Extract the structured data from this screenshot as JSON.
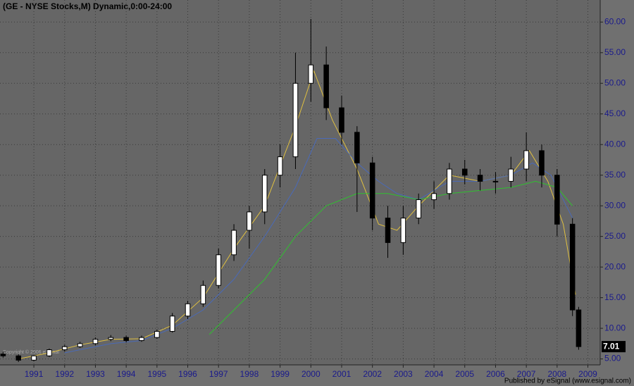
{
  "chart_data": {
    "type": "candlestick",
    "title": "(GE - NYSE Stocks,M) Dynamic,0:00-24:00",
    "copyright": "Copyright © 2006 eSignal",
    "footer": "Published by eSignal (www.esignal.com)",
    "x": [
      1990.5,
      1991.0,
      1991.5,
      1992.0,
      1992.5,
      1993.0,
      1993.5,
      1994.0,
      1994.5,
      1995.0,
      1995.5,
      1996.0,
      1996.5,
      1997.0,
      1997.5,
      1998.0,
      1998.5,
      1999.0,
      1999.5,
      2000.0,
      2000.5,
      2001.0,
      2001.5,
      2002.0,
      2002.5,
      2003.0,
      2003.5,
      2004.0,
      2004.5,
      2005.0,
      2005.5,
      2006.0,
      2006.5,
      2007.0,
      2007.5,
      2008.0,
      2008.5,
      2009.0,
      2009.2
    ],
    "open": [
      5.8,
      5.5,
      4.8,
      5.5,
      6.5,
      7.0,
      7.5,
      8.2,
      8.5,
      8.0,
      8.5,
      9.5,
      12,
      14,
      17,
      22,
      26,
      29,
      35,
      38,
      50,
      53,
      46,
      42,
      37,
      28,
      24,
      28,
      31,
      32,
      36,
      35,
      34,
      34,
      36,
      39,
      35,
      27,
      13
    ],
    "high": [
      6.2,
      5.8,
      5.6,
      6.7,
      7.3,
      7.8,
      8.5,
      8.9,
      8.8,
      8.8,
      9.8,
      12.5,
      14.5,
      17.8,
      23,
      27,
      30,
      36,
      40,
      55,
      60.5,
      56,
      48,
      43,
      38,
      30,
      30,
      32,
      34,
      37,
      37.5,
      36,
      35.5,
      38,
      42,
      40,
      36,
      28,
      13.5
    ],
    "low": [
      5.2,
      4.5,
      4.6,
      5.3,
      6.2,
      6.8,
      7.2,
      7.9,
      7.7,
      7.8,
      8.3,
      9.3,
      11.5,
      13.5,
      16.5,
      21,
      23,
      27,
      33,
      36,
      47,
      44,
      40,
      29,
      26,
      21.5,
      22,
      27,
      29.5,
      31,
      33.5,
      32.5,
      32,
      33,
      34,
      33,
      25,
      12,
      6.5
    ],
    "close": [
      5.5,
      4.8,
      5.5,
      6.5,
      7.0,
      7.5,
      8.2,
      8.5,
      8.0,
      8.5,
      9.5,
      12,
      14,
      17,
      22,
      26,
      29,
      35,
      38,
      50,
      53,
      46,
      42,
      37,
      28,
      24,
      28,
      31,
      32,
      36,
      35,
      34,
      34,
      36,
      39,
      35,
      27,
      13,
      7.01
    ],
    "series": [
      {
        "color": "#e0c040",
        "x": [
          1991.0,
          1992.0,
          1993.0,
          1994.0,
          1995.0,
          1996.0,
          1997.0,
          1998.0,
          1999.0,
          2000.0,
          2000.6,
          2001.2,
          2002.0,
          2002.7,
          2003.3,
          2004.0,
          2005.0,
          2006.0,
          2007.0,
          2007.6,
          2008.2,
          2008.7,
          2009.1
        ],
        "values": [
          5.0,
          6.0,
          7.3,
          8.2,
          8.3,
          10.5,
          15,
          23,
          30,
          43,
          52,
          44,
          36,
          27,
          26,
          30,
          35,
          34,
          35,
          39,
          34,
          27,
          15.5
        ]
      },
      {
        "color": "#4a6ab8",
        "x": [
          1992.5,
          1994.0,
          1995.0,
          1996.0,
          1997.0,
          1998.0,
          1999.0,
          2000.0,
          2000.7,
          2001.3,
          2002.0,
          2002.7,
          2003.3,
          2004.0,
          2005.0,
          2006.0,
          2007.0,
          2007.7,
          2008.3,
          2009.0
        ],
        "values": [
          6,
          7.5,
          8,
          10,
          13,
          18,
          25,
          33,
          41,
          41,
          37,
          34,
          32,
          31,
          34,
          34,
          35,
          37,
          35,
          28
        ]
      },
      {
        "color": "#30c030",
        "x": [
          1997.2,
          1998.0,
          1999.0,
          2000.0,
          2001.0,
          2002.0,
          2003.0,
          2004.0,
          2005.0,
          2006.0,
          2007.0,
          2007.8,
          2008.5,
          2009.0
        ],
        "values": [
          9,
          13,
          18,
          25,
          30,
          32,
          32,
          31,
          32,
          32.5,
          33,
          34,
          33,
          30
        ]
      }
    ],
    "xlim": [
      1990.4,
      2009.9
    ],
    "ylim": [
      4.03,
      63.6
    ],
    "xticks": [
      {
        "value": 1991.5,
        "label": "1991"
      },
      {
        "value": 1992.5,
        "label": "1992"
      },
      {
        "value": 1993.5,
        "label": "1993"
      },
      {
        "value": 1994.5,
        "label": "1994"
      },
      {
        "value": 1995.5,
        "label": "1995"
      },
      {
        "value": 1996.5,
        "label": "1996"
      },
      {
        "value": 1997.5,
        "label": "1997"
      },
      {
        "value": 1998.5,
        "label": "1998"
      },
      {
        "value": 1999.5,
        "label": "1999"
      },
      {
        "value": 2000.5,
        "label": "2000"
      },
      {
        "value": 2001.5,
        "label": "2001"
      },
      {
        "value": 2002.5,
        "label": "2002"
      },
      {
        "value": 2003.5,
        "label": "2003"
      },
      {
        "value": 2004.5,
        "label": "2004"
      },
      {
        "value": 2005.5,
        "label": "2005"
      },
      {
        "value": 2006.5,
        "label": "2006"
      },
      {
        "value": 2007.5,
        "label": "2007"
      },
      {
        "value": 2008.5,
        "label": "2008"
      },
      {
        "value": 2009.5,
        "label": "2009"
      }
    ],
    "yticks": [
      {
        "value": 5,
        "label": "5.00"
      },
      {
        "value": 10,
        "label": "10.00"
      },
      {
        "value": 15,
        "label": "15.00"
      },
      {
        "value": 20,
        "label": "20.00"
      },
      {
        "value": 25,
        "label": "25.00"
      },
      {
        "value": 30,
        "label": "30.00"
      },
      {
        "value": 35,
        "label": "35.00"
      },
      {
        "value": 40,
        "label": "40.00"
      },
      {
        "value": 45,
        "label": "45.00"
      },
      {
        "value": 50,
        "label": "50.00"
      },
      {
        "value": 55,
        "label": "55.00"
      },
      {
        "value": 60,
        "label": "60.00"
      }
    ],
    "grid": true
  }
}
